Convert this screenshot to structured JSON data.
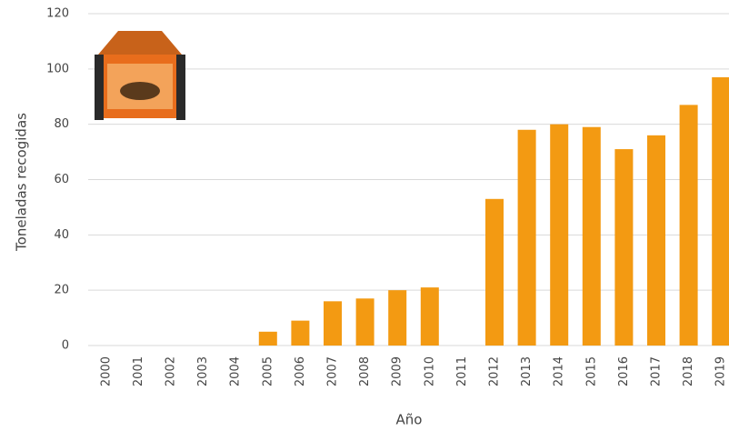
{
  "chart_data": {
    "type": "bar",
    "categories": [
      "2000",
      "2001",
      "2002",
      "2003",
      "2004",
      "2005",
      "2006",
      "2007",
      "2008",
      "2009",
      "2010",
      "2011",
      "2012",
      "2013",
      "2014",
      "2015",
      "2016",
      "2017",
      "2018",
      "2019"
    ],
    "values": [
      0,
      0,
      0,
      0,
      0,
      5,
      9,
      16,
      17,
      20,
      21,
      0,
      53,
      78,
      80,
      79,
      71,
      76,
      87,
      97
    ],
    "color": "#f39a12",
    "xlabel": "Año",
    "ylabel": "Toneladas recogidas",
    "ylim": [
      0,
      120
    ],
    "yticks": [
      0,
      20,
      40,
      60,
      80,
      100,
      120
    ],
    "grid": true
  }
}
